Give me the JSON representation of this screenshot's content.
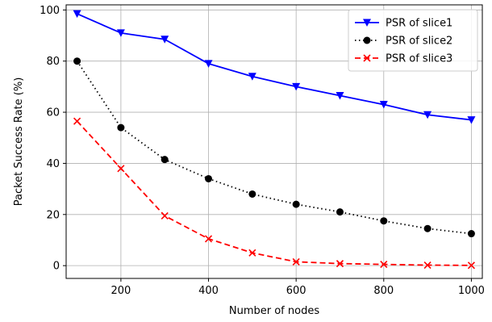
{
  "chart_data": {
    "type": "line",
    "title": "",
    "xlabel": "Number of nodes",
    "ylabel": "Packet Success Rate (%)",
    "xlim": [
      75,
      1025
    ],
    "ylim": [
      -5,
      102
    ],
    "xticks": [
      200,
      400,
      600,
      800,
      1000
    ],
    "yticks": [
      0,
      20,
      40,
      60,
      80,
      100
    ],
    "grid": true,
    "legend_position": "top-right",
    "x": [
      100,
      200,
      300,
      400,
      500,
      600,
      700,
      800,
      900,
      1000
    ],
    "series": [
      {
        "name": "PSR of slice1",
        "color": "#0000ff",
        "line_style": "solid",
        "marker": "triangle-down",
        "values": [
          98.5,
          91,
          88.5,
          79,
          74,
          70,
          66.5,
          63,
          59,
          57
        ]
      },
      {
        "name": "PSR of slice2",
        "color": "#000000",
        "line_style": "dotted",
        "marker": "circle",
        "values": [
          80,
          54,
          41.5,
          34,
          28,
          24,
          21,
          17.5,
          14.5,
          12.5
        ]
      },
      {
        "name": "PSR of slice3",
        "color": "#ff0000",
        "line_style": "dashed",
        "marker": "x",
        "values": [
          56.5,
          38,
          19.5,
          10.5,
          5,
          1.5,
          0.8,
          0.5,
          0.2,
          0.1
        ]
      }
    ]
  }
}
